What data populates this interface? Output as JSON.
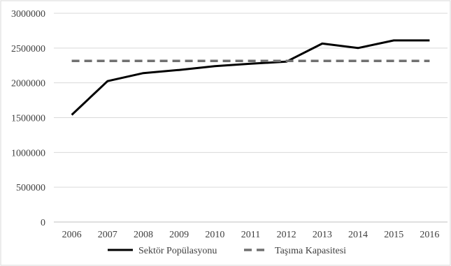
{
  "chart_data": {
    "type": "line",
    "x": [
      "2006",
      "2007",
      "2008",
      "2009",
      "2010",
      "2011",
      "2012",
      "2013",
      "2014",
      "2015",
      "2016"
    ],
    "series": [
      {
        "name": "Sektör Popülasyonu",
        "values": [
          1540000,
          2025000,
          2140000,
          2185000,
          2240000,
          2275000,
          2305000,
          2565000,
          2500000,
          2610000,
          2610000
        ],
        "color": "#000000",
        "style": "solid"
      },
      {
        "name": "Taşıma Kapasitesi",
        "values": [
          2315000,
          2315000,
          2315000,
          2315000,
          2315000,
          2315000,
          2315000,
          2315000,
          2315000,
          2315000,
          2315000
        ],
        "color": "#707070",
        "style": "dashed"
      }
    ],
    "yticks": [
      "0",
      "500000",
      "1000000",
      "1500000",
      "2000000",
      "2500000",
      "3000000"
    ],
    "ylim": [
      0,
      3000000
    ],
    "title": "",
    "xlabel": "",
    "ylabel": "",
    "grid": "horizontal",
    "legend": "bottom",
    "colors": {
      "grid": "#d9d9d9",
      "axis": "#bfbfbf",
      "text": "#404040"
    }
  }
}
